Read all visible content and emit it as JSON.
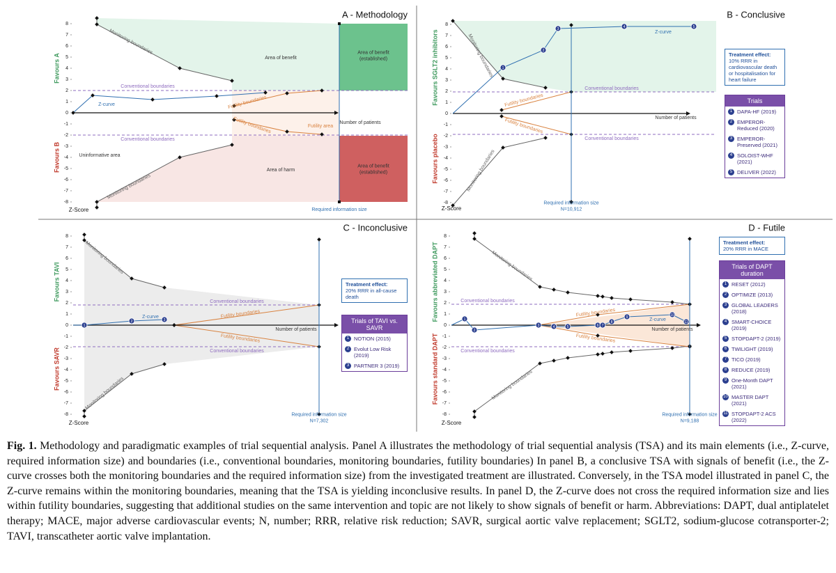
{
  "figure": {
    "yticks": [
      8,
      7,
      6,
      5,
      4,
      3,
      2,
      1,
      0,
      -1,
      -2,
      -3,
      -4,
      -5,
      -6,
      -7,
      -8
    ],
    "panels": [
      {
        "title": "A - Methodology",
        "favours_top": "Favours A",
        "favours_bottom": "Favours B",
        "z_label": "Z-Score",
        "annotations": [
          "Monitoring boundaries",
          "Area of benefit",
          [
            "Area of benefit",
            "(established)"
          ],
          "Conventional boundaries",
          "Z-curve",
          "Futility boundaries",
          "Number of patients",
          "Futility boundaries",
          "Futility area",
          "Conventional boundaries",
          "Uninformative area",
          "Area of harm",
          [
            "Area of benefit",
            "(established)"
          ],
          "Monitoring boundaries",
          "Required information size"
        ]
      },
      {
        "title": "B - Conclusive",
        "favours_top": "Favours SGLT2 inhibitors",
        "favours_bottom": "Favours placebo",
        "z_label": "Z-Score",
        "annotations": [
          "Monitoring boundaries",
          "Z-curve",
          "Conventional boundaries",
          "Futility boundaries",
          "Number of patients",
          "Futility boundaries",
          "Conventional boundaries",
          "Monitoring boundaries",
          [
            "Required information size",
            "N=10,912"
          ]
        ],
        "effect": {
          "title": "Treatment effect:",
          "text": "10% RRR in cardiovascular death or hospitalisation for heart failure"
        },
        "trials": {
          "title": "Trials",
          "items": [
            {
              "n": 1,
              "name": "DAPA-HF (2019)"
            },
            {
              "n": 2,
              "name": "EMPEROR-Reduced (2020)"
            },
            {
              "n": 3,
              "name": "EMPEROR-Preserved (2021)"
            },
            {
              "n": 4,
              "name": "SOLOIST-WHF (2021)"
            },
            {
              "n": 5,
              "name": "DELIVER (2022)"
            }
          ]
        }
      },
      {
        "title": "C - Inconclusive",
        "favours_top": "Favours TAVI",
        "favours_bottom": "Favours SAVR",
        "z_label": "Z-Score",
        "annotations": [
          "Monitoring boundaries",
          "Z-curve",
          "Conventional boundaries",
          "Futility boundaries",
          "Number of patients",
          "Futility boundaries",
          "Conventional boundaries",
          "Monitoring boundaries",
          [
            "Required information size",
            "N=7,302"
          ]
        ],
        "effect": {
          "title": "Treatment effect:",
          "text": "20% RRR in all-cause death"
        },
        "trials": {
          "title": "Trials of TAVI vs. SAVR",
          "items": [
            {
              "n": 1,
              "name": "NOTION (2015)"
            },
            {
              "n": 2,
              "name": "Evolut Low Risk (2019)"
            },
            {
              "n": 3,
              "name": "PARTNER 3 (2019)"
            }
          ]
        }
      },
      {
        "title": "D - Futile",
        "favours_top": "Favours abbreviated DAPT",
        "favours_bottom": "Favours standard DAPT",
        "z_label": "Z-Score",
        "annotations": [
          "Monitoring boundaries",
          "Conventional boundaries",
          "Futility boundaries",
          "Z-curve",
          "Number of patients",
          "Futility boundaries",
          "Conventional boundaries",
          "Monitoring boundaries",
          [
            "Required information size",
            "N=9,188"
          ]
        ],
        "effect": {
          "title": "Treatment effect:",
          "text": "20% RRR in MACE"
        },
        "trials": {
          "title": "Trials of DAPT duration",
          "items": [
            {
              "n": 1,
              "name": "RESET (2012)"
            },
            {
              "n": 2,
              "name": "OPTIMIZE (2013)"
            },
            {
              "n": 3,
              "name": "GLOBAL LEADERS (2018)"
            },
            {
              "n": 4,
              "name": "SMART-CHOICE (2019)"
            },
            {
              "n": 5,
              "name": "STOPDAPT-2 (2019)"
            },
            {
              "n": 6,
              "name": "TWILIGHT (2019)"
            },
            {
              "n": 7,
              "name": "TICO (2019)"
            },
            {
              "n": 8,
              "name": "REDUCE (2019)"
            },
            {
              "n": 9,
              "name": "One-Month DAPT (2021)"
            },
            {
              "n": 10,
              "name": "MASTER DAPT (2021)"
            },
            {
              "n": 11,
              "name": "STOPDAPT-2 ACS (2022)"
            }
          ]
        }
      }
    ]
  },
  "caption": {
    "label": "Fig. 1.",
    "text": "Methodology and paradigmatic examples of trial sequential analysis. Panel A illustrates the methodology of trial sequential analysis (TSA) and its main elements (i.e., Z-curve, required information size) and boundaries (i.e., conventional boundaries, monitoring boundaries, futility boundaries) In panel B, a conclusive TSA with signals of benefit (i.e., the Z-curve crosses both the monitoring boundaries and the required information size) from the investigated treatment are illustrated. Conversely, in the TSA model illustrated in panel C, the Z-curve remains within the monitoring boundaries, meaning that the TSA is yielding inconclusive results. In panel D, the Z-curve does not cross the required information size and lies within futility boundaries, suggesting that additional studies on the same intervention and topic are not likely to show signals of benefit or harm. Abbreviations: DAPT, dual antiplatelet therapy; MACE, major adverse cardiovascular events; N, number; RRR, relative risk reduction; SAVR, surgical aortic valve replacement; SGLT2, sodium-glucose cotransporter-2; TAVI, transcatheter aortic valve implantation."
  }
}
